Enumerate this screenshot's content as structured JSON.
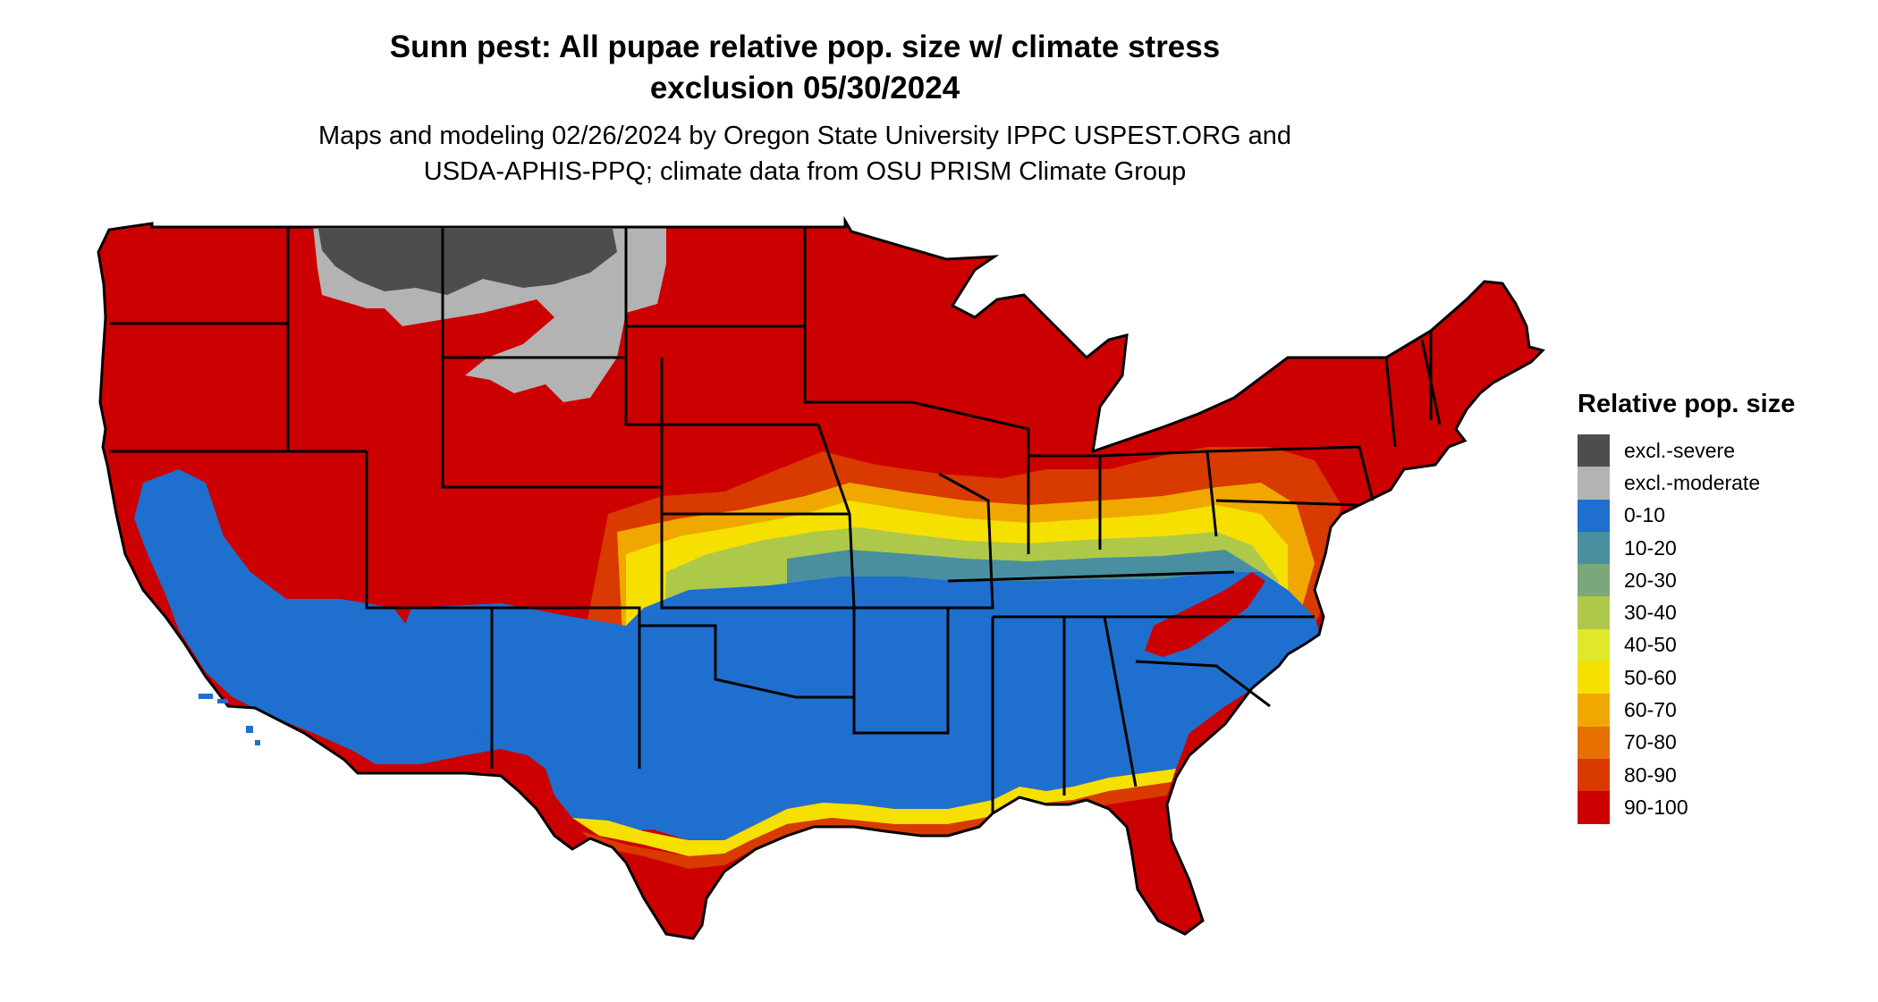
{
  "title_line1": "Sunn pest: All pupae relative pop. size w/ climate stress",
  "title_line2": "exclusion 05/30/2024",
  "subtitle_line1": "Maps and modeling 02/26/2024 by Oregon State University IPPC USPEST.ORG and",
  "subtitle_line2": "USDA-APHIS-PPQ; climate data from OSU PRISM Climate Group",
  "map": {
    "region": "Contiguous United States",
    "background_class_color": "#cc0000",
    "zones": [
      {
        "class": "excl.-severe",
        "area": "northern Montana"
      },
      {
        "class": "excl.-moderate",
        "area": "Montana / northern Wyoming"
      },
      {
        "class": "0-10",
        "area": "Southern United States, Nevada, California Central Valley"
      },
      {
        "class": "50-60",
        "area": "transition band across central states"
      },
      {
        "class": "90-100",
        "area": "northern states, Gulf coast, Florida, Rocky Mountains"
      }
    ]
  },
  "legend": {
    "title": "Relative pop. size",
    "items": [
      {
        "label": "excl.-severe",
        "color": "#4d4d4d"
      },
      {
        "label": "excl.-moderate",
        "color": "#b3b3b3"
      },
      {
        "label": "0-10",
        "color": "#1f6fcf"
      },
      {
        "label": "10-20",
        "color": "#4a8fa0"
      },
      {
        "label": "20-30",
        "color": "#7ca77a"
      },
      {
        "label": "30-40",
        "color": "#aec94a"
      },
      {
        "label": "40-50",
        "color": "#dfe82a"
      },
      {
        "label": "50-60",
        "color": "#f5e000"
      },
      {
        "label": "60-70",
        "color": "#f0a800"
      },
      {
        "label": "70-80",
        "color": "#e57000"
      },
      {
        "label": "80-90",
        "color": "#d83a00"
      },
      {
        "label": "90-100",
        "color": "#cc0000"
      }
    ]
  }
}
